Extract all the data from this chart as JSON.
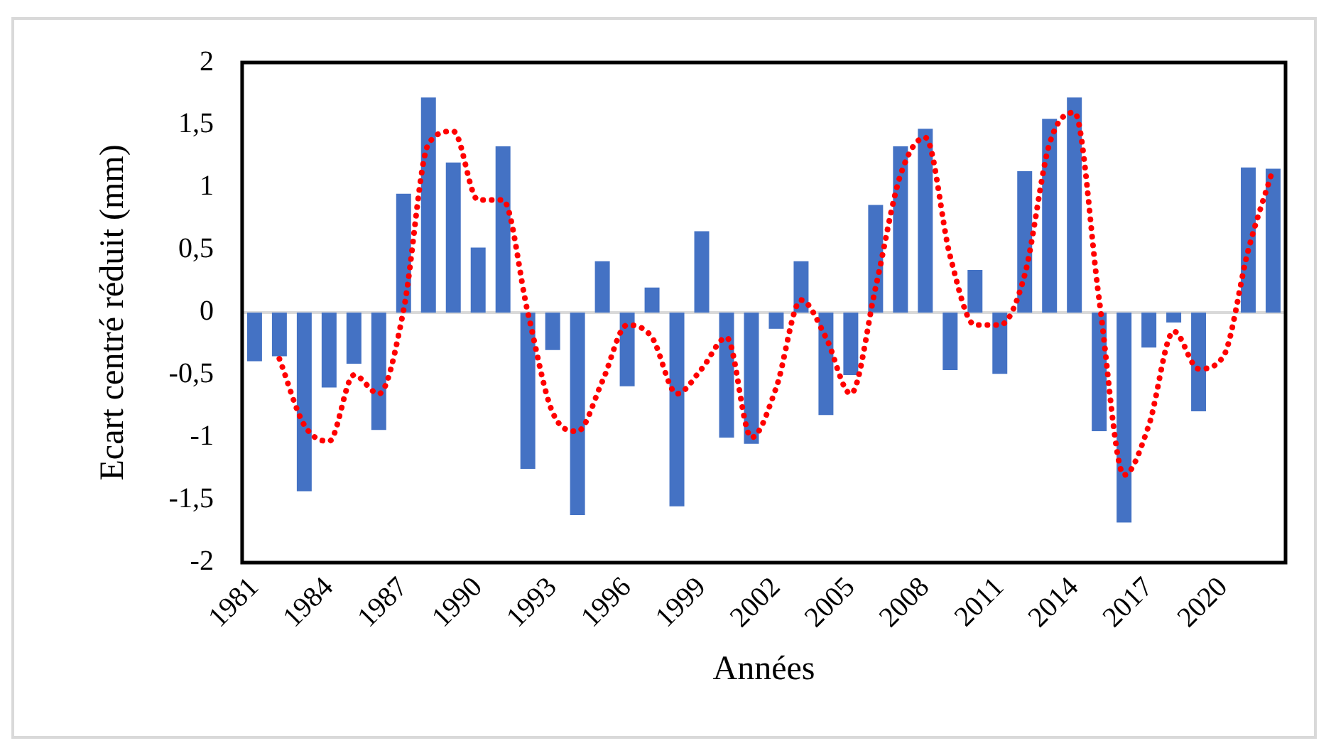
{
  "chart_data": {
    "type": "bar",
    "xlabel": "Années",
    "ylabel": "Ecart centré réduit (mm)",
    "categories": [
      "1981",
      null,
      null,
      "1984",
      null,
      null,
      "1987",
      null,
      null,
      "1990",
      null,
      null,
      "1993",
      null,
      null,
      "1996",
      null,
      null,
      "1999",
      null,
      null,
      "2002",
      null,
      null,
      "2005",
      null,
      null,
      "2008",
      null,
      null,
      "2011",
      null,
      null,
      "2014",
      null,
      null,
      "2017",
      null,
      null,
      "2020",
      null,
      null
    ],
    "series": [
      {
        "color": "#4472c4",
        "values": [
          -0.39,
          -0.35,
          -1.43,
          -0.6,
          -0.41,
          -0.94,
          0.95,
          1.72,
          1.2,
          0.52,
          1.33,
          -1.25,
          -0.3,
          -1.62,
          0.41,
          -0.59,
          0.2,
          -1.55,
          0.65,
          -1.0,
          -1.05,
          -0.13,
          0.41,
          -0.82,
          -0.5,
          0.86,
          1.33,
          1.47,
          -0.46,
          0.34,
          -0.49,
          1.13,
          1.55,
          1.72,
          -0.95,
          -1.68,
          -0.28,
          -0.08,
          -0.79,
          0,
          1.16,
          1.15
        ]
      },
      {
        "type": "line",
        "color": "#ff0000",
        "line_style": "dotted",
        "marker": "none",
        "values": [
          null,
          -0.37,
          -0.9,
          -1.03,
          -0.5,
          -0.65,
          0.02,
          1.35,
          1.45,
          0.9,
          0.9,
          0.0,
          -0.8,
          -0.95,
          -0.55,
          -0.1,
          -0.2,
          -0.65,
          -0.45,
          -0.2,
          -1.0,
          -0.6,
          0.1,
          -0.2,
          -0.65,
          0.2,
          1.1,
          1.4,
          0.45,
          -0.1,
          -0.1,
          0.3,
          1.35,
          1.6,
          0.1,
          -1.3,
          -0.9,
          -0.15,
          -0.45,
          -0.35,
          0.5,
          1.15
        ]
      }
    ],
    "ylim": [
      -2,
      2
    ],
    "yticks": [
      -2,
      {
        "value": -1.5,
        "label": "-1,5"
      },
      -1,
      {
        "value": -0.5,
        "label": "-0,5"
      },
      0,
      {
        "value": 0.5,
        "label": "0,5"
      },
      1,
      {
        "value": 1.5,
        "label": "1,5"
      },
      2
    ],
    "ref_lines": [
      {
        "axis": "y",
        "value": 0,
        "color": "#d9d9d9"
      }
    ],
    "grid": false,
    "legend": false
  }
}
